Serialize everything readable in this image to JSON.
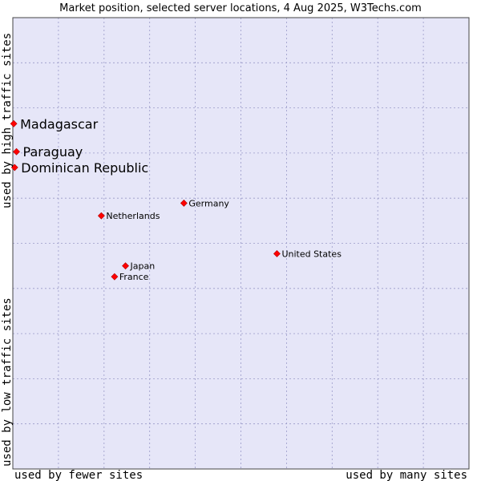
{
  "chart_data": {
    "type": "scatter",
    "title": "Market position, selected server locations, 4 Aug 2025, W3Techs.com",
    "xlabel_left": "used by fewer sites",
    "xlabel_right": "used by many sites",
    "ylabel_bottom": "used by low traffic sites",
    "ylabel_top": "used by high traffic sites",
    "grid": true,
    "xlim": [
      0,
      100
    ],
    "ylim": [
      0,
      100
    ],
    "colors": {
      "plot_bg": "#e6e6f8",
      "grid": "#9a9ac8",
      "marker": "#ff0000"
    },
    "points": [
      {
        "label": "Madagascar",
        "x": 0.2,
        "y": 76.5,
        "highlight": true
      },
      {
        "label": "Paraguay",
        "x": 0.8,
        "y": 70.3,
        "highlight": true
      },
      {
        "label": "Dominican Republic",
        "x": 0.4,
        "y": 66.8,
        "highlight": true
      },
      {
        "label": "Germany",
        "x": 37.5,
        "y": 58.9,
        "highlight": false
      },
      {
        "label": "Netherlands",
        "x": 19.4,
        "y": 56.1,
        "highlight": false
      },
      {
        "label": "United States",
        "x": 57.9,
        "y": 47.7,
        "highlight": false
      },
      {
        "label": "Japan",
        "x": 24.7,
        "y": 45.0,
        "highlight": false
      },
      {
        "label": "France",
        "x": 22.3,
        "y": 42.6,
        "highlight": false
      }
    ]
  }
}
